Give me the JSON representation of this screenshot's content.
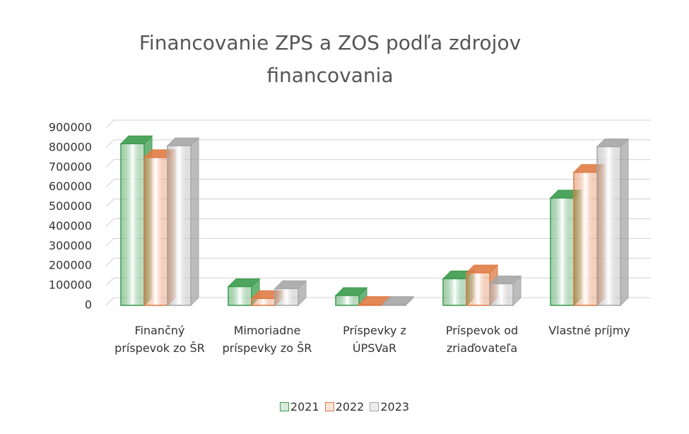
{
  "chart_data": {
    "type": "bar3d",
    "title": "Financovanie ZPS a ZOS podľa zdrojov financovania",
    "categories": [
      "Finančný príspevok zo ŠR",
      "Mimoriadne príspevky zo ŠR",
      "Príspevky z ÚPSVaR",
      "Príspevok od zriaďovateľa",
      "Vlastné príjmy"
    ],
    "series": [
      {
        "name": "2021",
        "color": "#3a9b4d",
        "values": [
          820000,
          95000,
          50000,
          135000,
          545000
        ]
      },
      {
        "name": "2022",
        "color": "#e07b45",
        "values": [
          750000,
          35000,
          5000,
          165000,
          675000
        ]
      },
      {
        "name": "2023",
        "color": "#a6a6a6",
        "values": [
          810000,
          85000,
          5000,
          110000,
          805000
        ]
      }
    ],
    "ylim": [
      0,
      900000
    ],
    "yticks": [
      0,
      100000,
      200000,
      300000,
      400000,
      500000,
      600000,
      700000,
      800000,
      900000
    ],
    "grid": true,
    "legend": "bottom"
  }
}
